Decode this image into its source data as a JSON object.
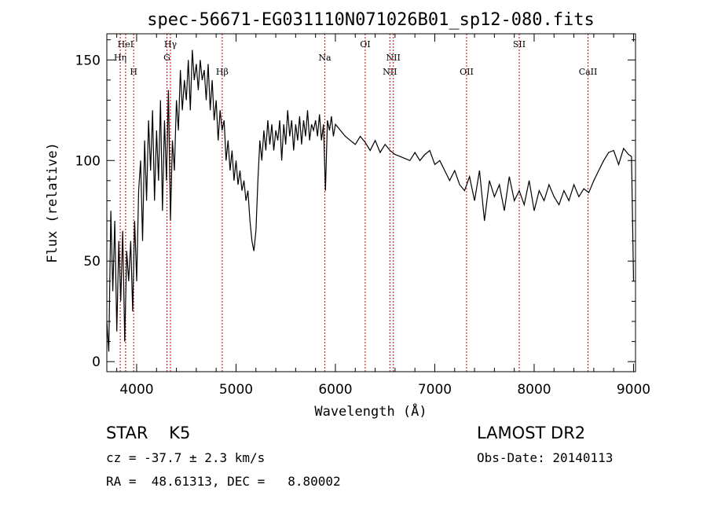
{
  "chart_data": {
    "type": "line",
    "title": "spec-56671-EG031110N071026B01_sp12-080.fits",
    "xlabel": "Wavelength (Å)",
    "ylabel": "Flux (relative)",
    "xlim": [
      3700,
      9020
    ],
    "ylim": [
      -5,
      163
    ],
    "x_ticks": [
      4000,
      5000,
      6000,
      7000,
      8000,
      9000
    ],
    "y_ticks": [
      0,
      50,
      100,
      150
    ],
    "grid": false,
    "series": [
      {
        "x": [
          3700,
          3720,
          3740,
          3760,
          3780,
          3800,
          3820,
          3840,
          3860,
          3880,
          3900,
          3920,
          3940,
          3960,
          3980,
          4000,
          4020,
          4040,
          4060,
          4080,
          4100,
          4120,
          4140,
          4160,
          4180,
          4200,
          4220,
          4240,
          4260,
          4280,
          4300,
          4320,
          4340,
          4360,
          4380,
          4400,
          4420,
          4440,
          4460,
          4480,
          4500,
          4520,
          4540,
          4560,
          4580,
          4600,
          4620,
          4640,
          4660,
          4680,
          4700,
          4720,
          4740,
          4760,
          4780,
          4800,
          4820,
          4840,
          4860,
          4880,
          4900,
          4920,
          4940,
          4960,
          4980,
          5000,
          5020,
          5040,
          5060,
          5080,
          5100,
          5120,
          5140,
          5160,
          5180,
          5200,
          5220,
          5240,
          5260,
          5280,
          5300,
          5320,
          5340,
          5360,
          5380,
          5400,
          5420,
          5440,
          5460,
          5480,
          5500,
          5520,
          5540,
          5560,
          5580,
          5600,
          5620,
          5640,
          5660,
          5680,
          5700,
          5720,
          5740,
          5760,
          5780,
          5800,
          5820,
          5840,
          5860,
          5880,
          5900,
          5920,
          5940,
          5960,
          5980,
          6000,
          6050,
          6100,
          6150,
          6200,
          6250,
          6300,
          6350,
          6400,
          6450,
          6500,
          6550,
          6600,
          6650,
          6700,
          6750,
          6800,
          6850,
          6900,
          6950,
          7000,
          7050,
          7100,
          7150,
          7200,
          7250,
          7300,
          7350,
          7400,
          7450,
          7500,
          7550,
          7600,
          7650,
          7700,
          7750,
          7800,
          7850,
          7900,
          7950,
          8000,
          8050,
          8100,
          8150,
          8200,
          8250,
          8300,
          8350,
          8400,
          8450,
          8500,
          8550,
          8600,
          8650,
          8700,
          8750,
          8800,
          8850,
          8900,
          8950,
          8980,
          9000
        ],
        "y": [
          20,
          5,
          75,
          35,
          70,
          15,
          60,
          30,
          65,
          10,
          55,
          40,
          60,
          25,
          70,
          40,
          85,
          100,
          60,
          110,
          80,
          120,
          95,
          125,
          80,
          115,
          90,
          130,
          75,
          120,
          90,
          135,
          70,
          110,
          95,
          130,
          115,
          145,
          125,
          140,
          130,
          150,
          125,
          155,
          140,
          148,
          135,
          150,
          140,
          145,
          130,
          148,
          125,
          140,
          120,
          130,
          110,
          125,
          115,
          120,
          100,
          110,
          95,
          105,
          90,
          100,
          88,
          95,
          85,
          90,
          80,
          85,
          70,
          60,
          55,
          65,
          90,
          110,
          100,
          115,
          105,
          120,
          108,
          118,
          105,
          115,
          110,
          120,
          100,
          118,
          108,
          125,
          112,
          120,
          105,
          118,
          110,
          122,
          108,
          120,
          112,
          125,
          110,
          118,
          115,
          120,
          112,
          123,
          110,
          118,
          85,
          120,
          115,
          122,
          112,
          118,
          115,
          112,
          110,
          108,
          112,
          109,
          105,
          110,
          104,
          108,
          105,
          103,
          102,
          101,
          100,
          104,
          100,
          103,
          105,
          98,
          100,
          95,
          90,
          95,
          88,
          85,
          92,
          80,
          95,
          70,
          90,
          82,
          88,
          75,
          92,
          80,
          85,
          78,
          90,
          75,
          85,
          80,
          88,
          82,
          78,
          85,
          80,
          88,
          82,
          86,
          84,
          90,
          95,
          100,
          104,
          105,
          98,
          106,
          103,
          102,
          40
        ]
      }
    ],
    "line_markers": [
      {
        "label": "HeI",
        "x": 3889,
        "row": 0
      },
      {
        "label": "Hη",
        "x": 3835,
        "row": 1
      },
      {
        "label": "H",
        "x": 3970,
        "row": 2
      },
      {
        "label": "Hγ",
        "x": 4340,
        "row": 0
      },
      {
        "label": "G",
        "x": 4305,
        "row": 1
      },
      {
        "label": "Hβ",
        "x": 4861,
        "row": 2
      },
      {
        "label": "Na",
        "x": 5893,
        "row": 1
      },
      {
        "label": "OI",
        "x": 6300,
        "row": 0
      },
      {
        "label": "NII",
        "x": 6583,
        "row": 1
      },
      {
        "label": "NII",
        "x": 6548,
        "row": 2
      },
      {
        "label": "OII",
        "x": 7320,
        "row": 2
      },
      {
        "label": "SII",
        "x": 7850,
        "row": 0
      },
      {
        "label": "CaII",
        "x": 8542,
        "row": 2
      }
    ],
    "colors": {
      "spectrum": "#000000",
      "marker": "#cc0000",
      "axes": "#000000"
    }
  },
  "info": {
    "class_text": "STAR    K5",
    "cz_text": "cz = -37.7 ± 2.3 km/s",
    "radec_text": "RA =  48.61313, DEC =   8.80002",
    "survey_text": "LAMOST DR2",
    "obsdate_text": "Obs-Date: 20140113"
  }
}
